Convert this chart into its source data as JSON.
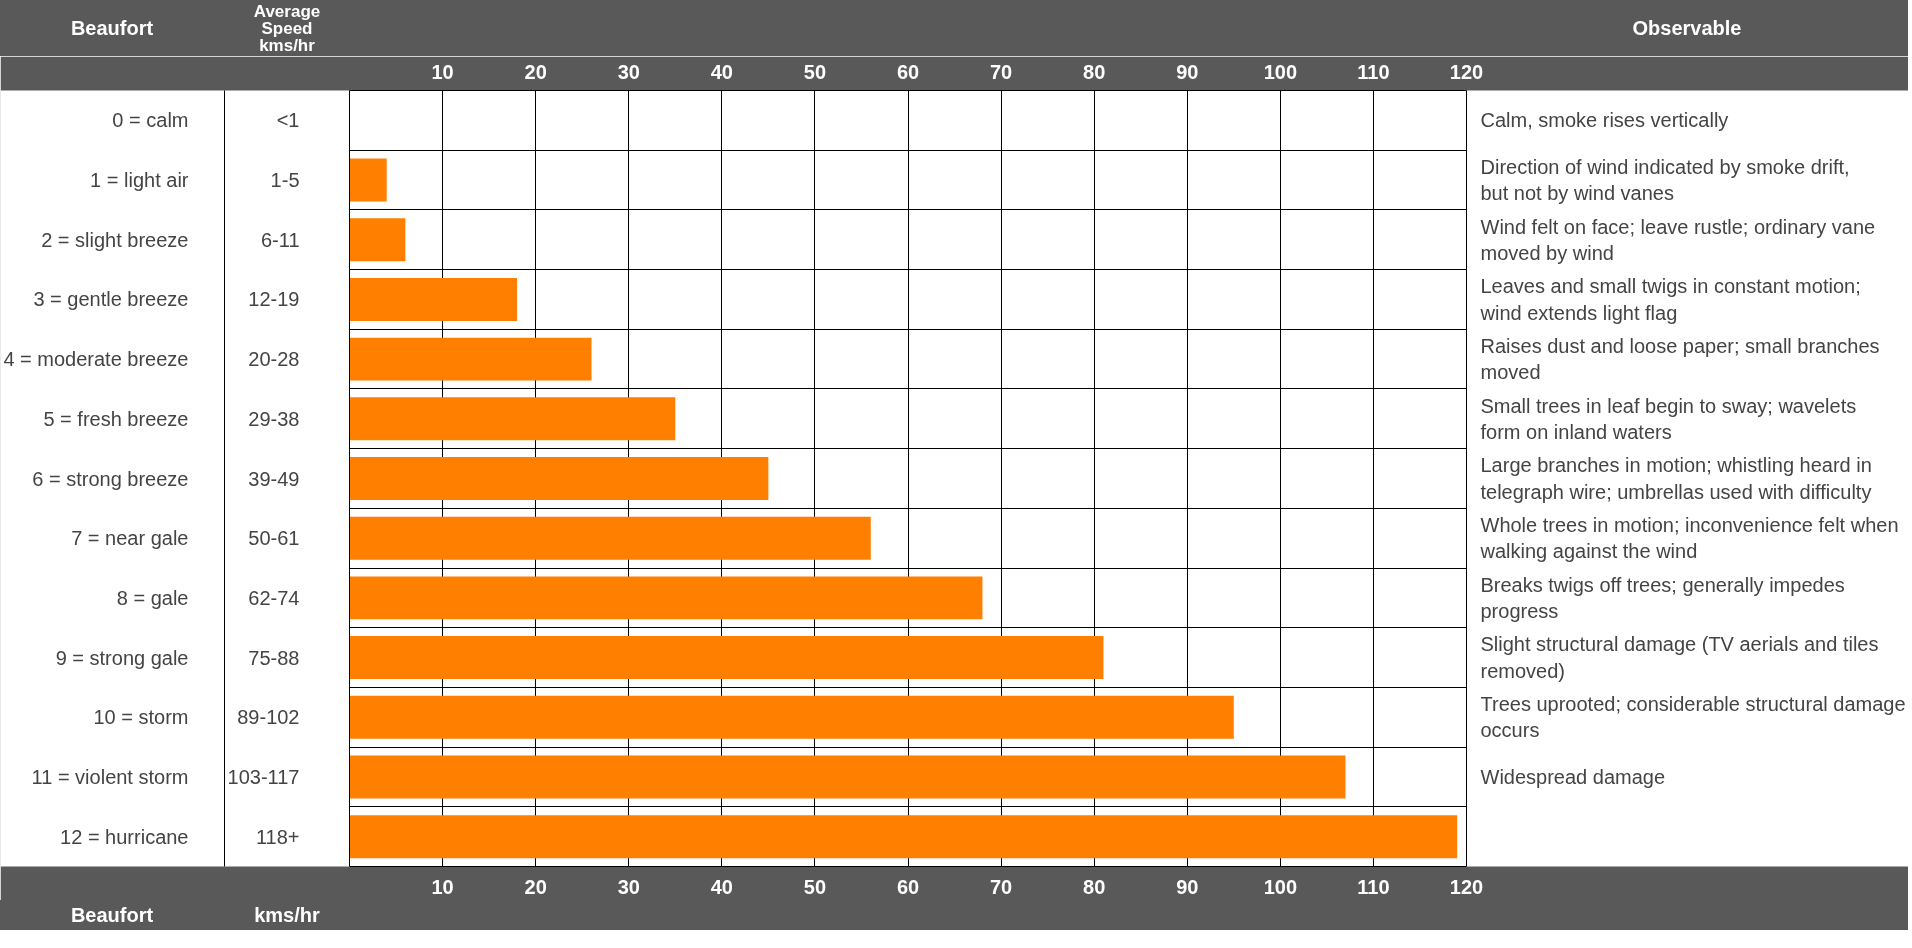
{
  "chart_data": {
    "type": "bar",
    "orientation": "horizontal",
    "ylabel": "Beaufort",
    "categories": [
      "0 = calm",
      "1 = light air",
      "2 = slight breeze",
      "3 = gentle breeze",
      "4 = moderate breeze",
      "5 = fresh breeze",
      "6 = strong breeze",
      "7 = near gale",
      "8 = gale",
      "9 = strong gale",
      "10 = storm",
      "11 = violent storm",
      "12 = hurricane"
    ],
    "values": [
      0,
      4,
      6,
      18,
      26,
      35,
      45,
      56,
      68,
      81,
      95,
      107,
      119
    ],
    "color": "#ff7f00",
    "xlim": [
      0,
      120
    ],
    "xticks": [
      10,
      20,
      30,
      40,
      50,
      60,
      70,
      80,
      90,
      100,
      110,
      120
    ],
    "x2lim": [
      0,
      120
    ],
    "x2ticks": [
      10,
      20,
      30,
      40,
      50,
      60,
      70,
      80,
      90,
      100,
      110,
      120
    ],
    "grid": "x",
    "legend": false,
    "annotations": [
      "Average Speed kms/hr",
      "Observable",
      "kms/hr",
      "<1",
      "1-5",
      "6-11",
      "12-19",
      "20-28",
      "29-38",
      "39-49",
      "50-61",
      "62-74",
      "75-88",
      "89-102",
      "103-117",
      "118+",
      "Calm, smoke rises vertically",
      "Direction of wind indicated by smoke drift, but not by wind vanes",
      "Wind felt on face; leave rustle; ordinary vane moved by wind",
      "Leaves and small twigs in constant motion; wind extends light flag",
      "Raises dust and loose paper; small branches moved",
      "Small trees in leaf begin to sway; wavelets form on inland waters",
      "Large branches in motion; whistling heard in telegraph wire; umbrellas used with difficulty",
      "Whole trees in motion; inconvenience felt when walking against the wind",
      "Breaks twigs off trees; generally impedes progress",
      "Slight structural damage (TV aerials and tiles removed)",
      "Trees uprooted; considerable structural damage occurs",
      "Widespread damage"
    ]
  }
}
